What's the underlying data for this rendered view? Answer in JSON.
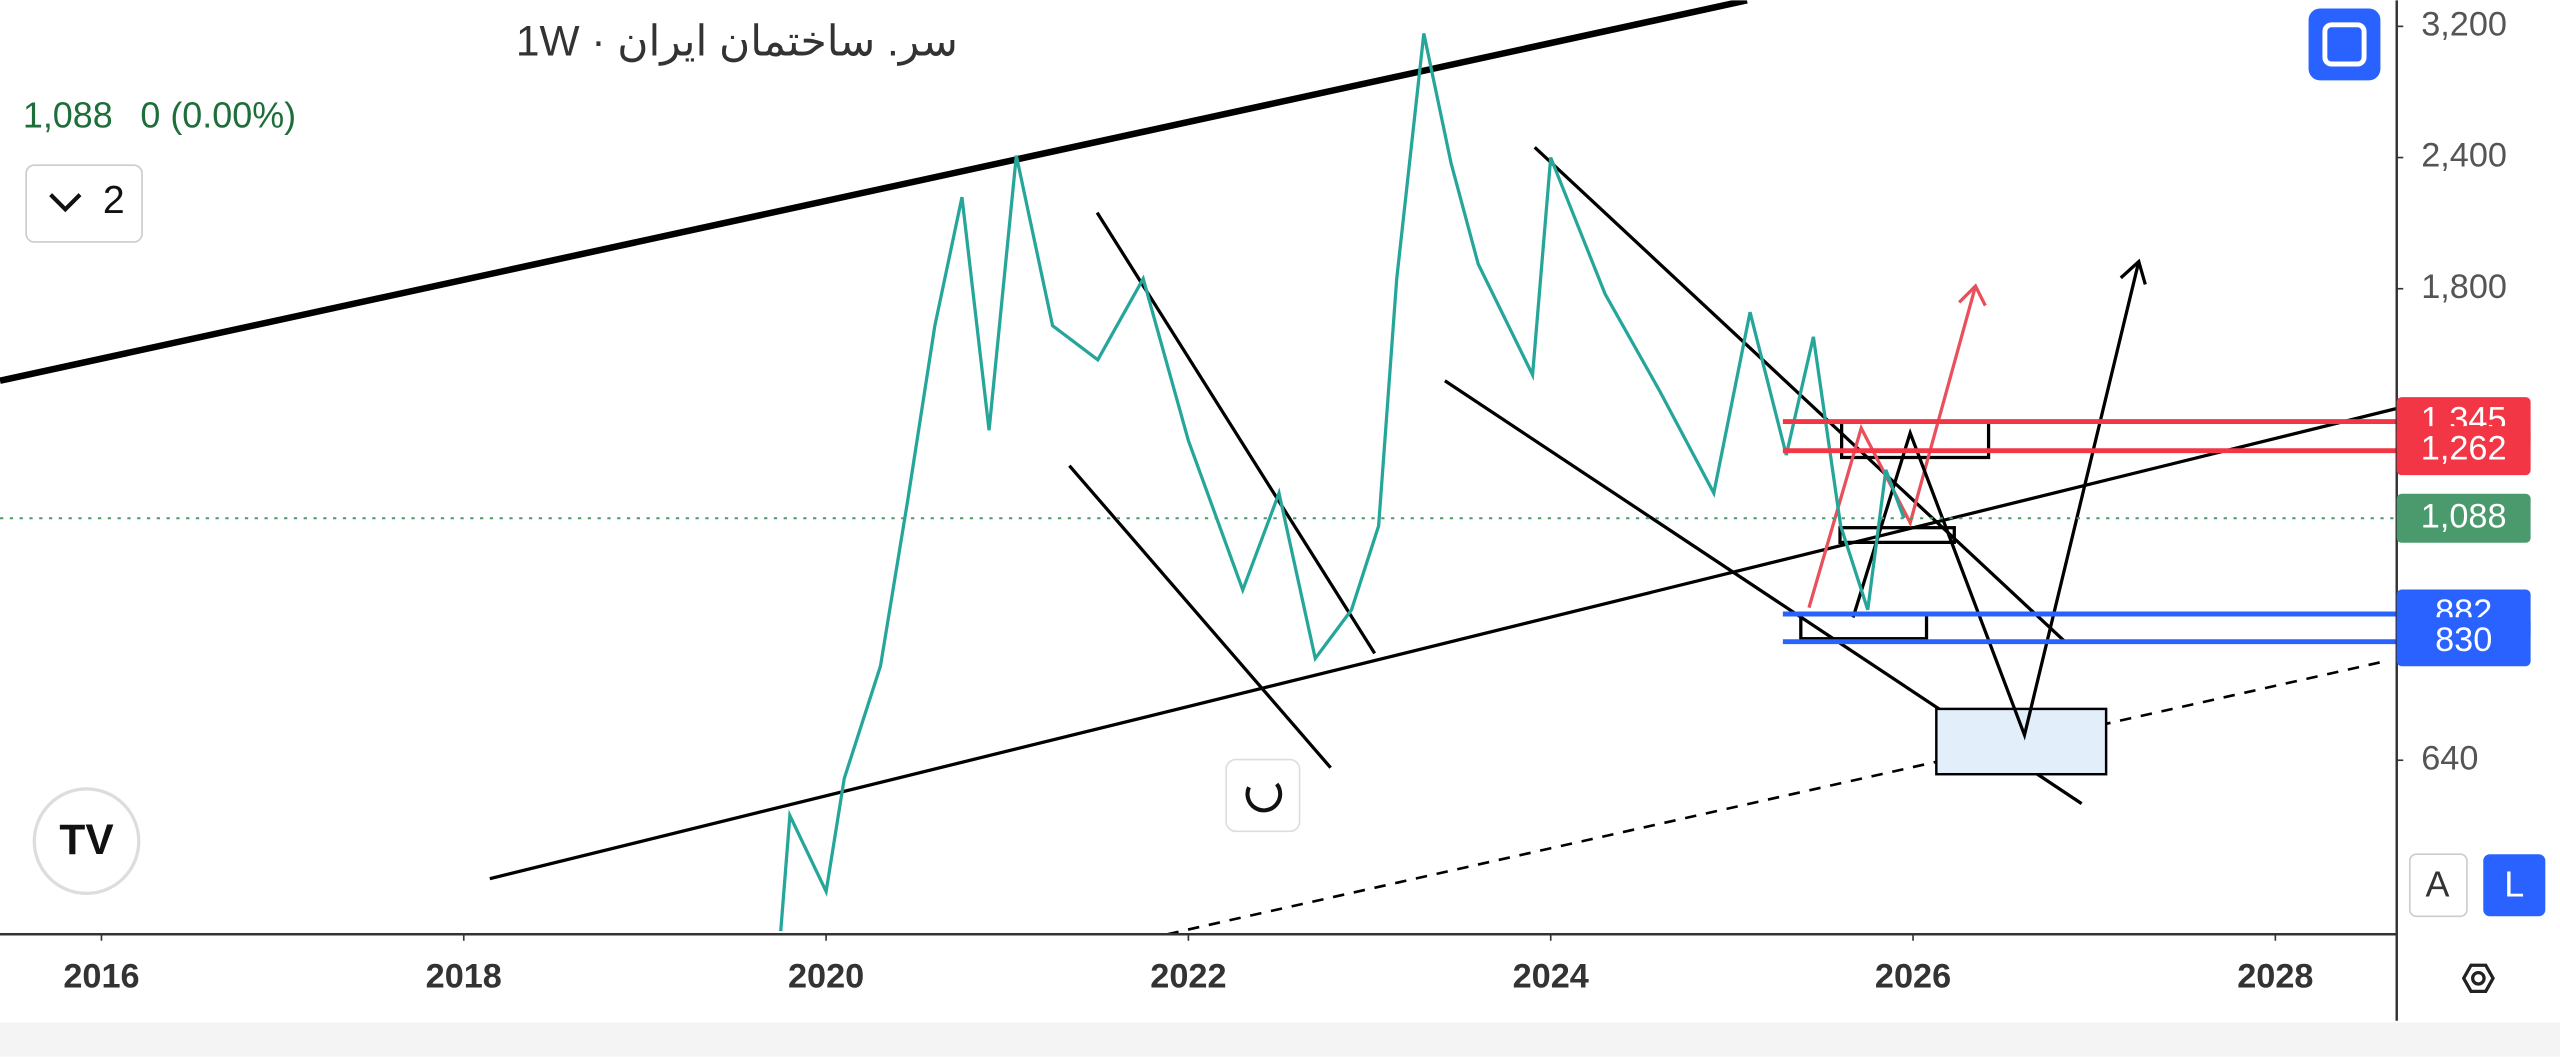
{
  "chart_data": {
    "type": "line",
    "title": "سر. ساختمان ایران · 1W",
    "change": "0 (0.00%)",
    "indicator_count": "2",
    "buttons": [
      "A",
      "L"
    ],
    "log_scale": true,
    "xlim": [
      2015.44,
      2028.67
    ],
    "ylim": [
      437,
      3388
    ],
    "xticks": [
      2016,
      2018,
      2020,
      2022,
      2024,
      2026,
      2028
    ],
    "yticks": [
      640,
      {
        "value": 1800,
        "label": "1,800"
      },
      {
        "value": 2400,
        "label": "2,400"
      },
      {
        "value": 3200,
        "label": "3,200"
      }
    ],
    "series": [
      {
        "color": "#26a69a",
        "x": [
          2019.75,
          2019.8,
          2020.0,
          2020.1,
          2020.3,
          2020.45,
          2020.6,
          2020.75,
          2020.9,
          2021.05,
          2021.25,
          2021.5,
          2021.75,
          2022.0,
          2022.3,
          2022.5,
          2022.7,
          2022.9,
          2023.05,
          2023.15,
          2023.3,
          2023.45,
          2023.6,
          2023.9,
          2024.0,
          2024.3,
          2024.6,
          2024.9,
          2025.1,
          2025.3,
          2025.45,
          2025.6,
          2025.75,
          2025.85,
          2025.95
        ],
        "values": [
          440,
          567,
          480,
          615,
          787,
          1130,
          1660,
          2200,
          1320,
          2410,
          1660,
          1540,
          1840,
          1290,
          930,
          1150,
          800,
          890,
          1070,
          1840,
          3150,
          2370,
          1900,
          1490,
          2400,
          1780,
          1440,
          1150,
          1710,
          1250,
          1620,
          1070,
          890,
          1210,
          1088
        ]
      }
    ],
    "last": {
      "value": 1088,
      "label": "1,088",
      "color": "#4a9a6e"
    },
    "levels": [
      {
        "value": 1345,
        "label": "1,345",
        "color": "#f23645"
      },
      {
        "value": 1262,
        "label": "1,262",
        "color": "#f23645"
      },
      {
        "value": 882,
        "label": "882",
        "color": "#2962ff"
      },
      {
        "value": 830,
        "label": "830",
        "color": "#2962ff"
      }
    ]
  }
}
